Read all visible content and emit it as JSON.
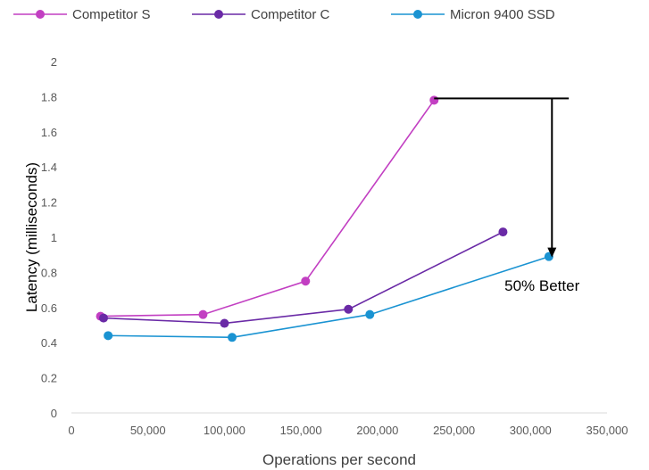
{
  "chart_data": {
    "type": "line",
    "title": "",
    "xlabel": "Operations per second",
    "ylabel": "Latency (milliseconds)",
    "xlim": [
      0,
      350000
    ],
    "ylim": [
      0,
      2
    ],
    "x_ticks": [
      0,
      50000,
      100000,
      150000,
      200000,
      250000,
      300000,
      350000
    ],
    "x_tick_labels": [
      "0",
      "50,000",
      "100,000",
      "150,000",
      "200,000",
      "250,000",
      "300,000",
      "350,000"
    ],
    "y_ticks": [
      0,
      0.2,
      0.4,
      0.6,
      0.8,
      1,
      1.2,
      1.4,
      1.6,
      1.8,
      2
    ],
    "y_tick_labels": [
      "0",
      "0.2",
      "0.4",
      "0.6",
      "0.8",
      "1",
      "1.2",
      "1.4",
      "1.6",
      "1.8",
      "2"
    ],
    "grid": false,
    "legend_position": "top",
    "series": [
      {
        "name": "Competitor S",
        "color": "#c23fc2",
        "points": [
          [
            19000,
            0.55
          ],
          [
            86000,
            0.56
          ],
          [
            153000,
            0.75
          ],
          [
            237000,
            1.78
          ]
        ]
      },
      {
        "name": "Competitor C",
        "color": "#6a2aa6",
        "points": [
          [
            21000,
            0.54
          ],
          [
            100000,
            0.51
          ],
          [
            181000,
            0.59
          ],
          [
            282000,
            1.03
          ]
        ]
      },
      {
        "name": "Micron 9400 SSD",
        "color": "#1a93d2",
        "points": [
          [
            24000,
            0.44
          ],
          [
            105000,
            0.43
          ],
          [
            195000,
            0.56
          ],
          [
            312000,
            0.89
          ]
        ]
      }
    ],
    "annotation": {
      "text": "50% Better",
      "bracket_from": [
        237000,
        1.79
      ],
      "bracket_to_x": 325000,
      "arrow_x": 314000,
      "arrow_from_y": 1.79,
      "arrow_to_y": 0.89,
      "label_at": [
        283000,
        0.72
      ]
    }
  }
}
